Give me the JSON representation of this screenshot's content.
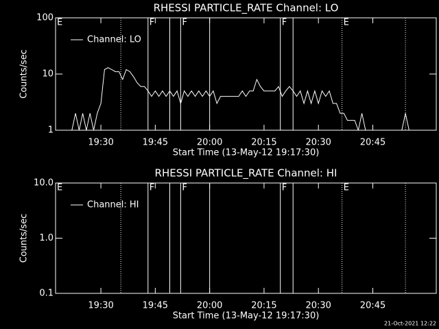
{
  "chart_data": [
    {
      "type": "line",
      "title": "RHESSI PARTICLE_RATE Channel: LO",
      "x_label": "Start Time (13-May-12 19:17:30)",
      "y_label": "Counts/sec",
      "log_y": true,
      "legend": "upper-left",
      "xlim": [
        "19:17:30",
        "21:02:30"
      ],
      "xticks": [
        "19:30",
        "19:45",
        "20:00",
        "20:15",
        "20:30",
        "20:45"
      ],
      "ylim": [
        1,
        100
      ],
      "yticks": [
        1,
        10,
        100
      ],
      "markers": [
        {
          "time": "19:17:30",
          "label": "E",
          "style": "solid"
        },
        {
          "time": "19:35:30",
          "style": "dotted"
        },
        {
          "time": "19:43:00",
          "label": "F",
          "style": "solid"
        },
        {
          "time": "19:49:00",
          "style": "solid"
        },
        {
          "time": "19:52:00",
          "label": "F",
          "style": "solid"
        },
        {
          "time": "20:00:00",
          "style": "solid"
        },
        {
          "time": "20:19:30",
          "label": "F",
          "style": "solid"
        },
        {
          "time": "20:23:00",
          "style": "solid"
        },
        {
          "time": "20:36:30",
          "label": "E",
          "style": "dotted"
        },
        {
          "time": "20:54:00",
          "style": "dotted"
        }
      ],
      "x": [
        "19:18",
        "19:19",
        "19:20",
        "19:21",
        "19:22",
        "19:23",
        "19:24",
        "19:25",
        "19:26",
        "19:27",
        "19:28",
        "19:29",
        "19:30",
        "19:31",
        "19:32",
        "19:33",
        "19:34",
        "19:35",
        "19:36",
        "19:37",
        "19:38",
        "19:39",
        "19:40",
        "19:41",
        "19:42",
        "19:43",
        "19:44",
        "19:45",
        "19:46",
        "19:47",
        "19:48",
        "19:49",
        "19:50",
        "19:51",
        "19:52",
        "19:53",
        "19:54",
        "19:55",
        "19:56",
        "19:57",
        "19:58",
        "19:59",
        "20:00",
        "20:01",
        "20:02",
        "20:03",
        "20:04",
        "20:05",
        "20:06",
        "20:07",
        "20:08",
        "20:09",
        "20:10",
        "20:11",
        "20:12",
        "20:13",
        "20:14",
        "20:15",
        "20:16",
        "20:17",
        "20:18",
        "20:19",
        "20:20",
        "20:21",
        "20:22",
        "20:23",
        "20:24",
        "20:25",
        "20:26",
        "20:27",
        "20:28",
        "20:29",
        "20:30",
        "20:31",
        "20:32",
        "20:33",
        "20:34",
        "20:35",
        "20:36",
        "20:37",
        "20:38",
        "20:39",
        "20:40",
        "20:41",
        "20:42",
        "20:43",
        "20:44",
        "20:45",
        "20:46",
        "20:47",
        "20:48",
        "20:49",
        "20:50",
        "20:51",
        "20:52",
        "20:53",
        "20:54",
        "20:55"
      ],
      "series": [
        {
          "name": "Channel: LO",
          "color": "#ffffff",
          "values": [
            1,
            1,
            1,
            1,
            1,
            2,
            1,
            2,
            1,
            2,
            1,
            2,
            3,
            12,
            13,
            12,
            11,
            11,
            8,
            12,
            11,
            9,
            7,
            6,
            6,
            5,
            4,
            5,
            4,
            5,
            4,
            5,
            4,
            5,
            3,
            5,
            4,
            5,
            4,
            5,
            4,
            5,
            4,
            5,
            3,
            4,
            4,
            4,
            4,
            4,
            4,
            5,
            4,
            5,
            5,
            8,
            6,
            5,
            5,
            5,
            5,
            6,
            4,
            5,
            6,
            5,
            4,
            5,
            3,
            5,
            3,
            5,
            3,
            5,
            4,
            5,
            3,
            3,
            2,
            2,
            1.5,
            1.5,
            1.5,
            1,
            2,
            1,
            1,
            1,
            1,
            1,
            1,
            1,
            1,
            1,
            1,
            1,
            2,
            1
          ]
        }
      ]
    },
    {
      "type": "line",
      "title": "RHESSI PARTICLE_RATE Channel: HI",
      "x_label": "Start Time (13-May-12 19:17:30)",
      "y_label": "Counts/sec",
      "log_y": true,
      "legend": "upper-left",
      "xlim": [
        "19:17:30",
        "21:02:30"
      ],
      "xticks": [
        "19:30",
        "19:45",
        "20:00",
        "20:15",
        "20:30",
        "20:45"
      ],
      "ylim": [
        0.1,
        10
      ],
      "yticks": [
        0.1,
        {
          "value": 1,
          "label": "1.0"
        },
        {
          "value": 10,
          "label": "10.0"
        }
      ],
      "markers": [
        {
          "time": "19:17:30",
          "label": "E",
          "style": "solid"
        },
        {
          "time": "19:35:30",
          "style": "dotted"
        },
        {
          "time": "19:43:00",
          "label": "F",
          "style": "solid"
        },
        {
          "time": "19:49:00",
          "style": "solid"
        },
        {
          "time": "19:52:00",
          "label": "F",
          "style": "solid"
        },
        {
          "time": "20:00:00",
          "style": "solid"
        },
        {
          "time": "20:19:30",
          "label": "F",
          "style": "solid"
        },
        {
          "time": "20:23:00",
          "style": "solid"
        },
        {
          "time": "20:36:30",
          "label": "E",
          "style": "dotted"
        },
        {
          "time": "20:54:00",
          "style": "dotted"
        }
      ],
      "series": [
        {
          "name": "Channel: HI",
          "color": "#ffffff"
        }
      ]
    }
  ],
  "footer": "21-Oct-2021 12:22"
}
